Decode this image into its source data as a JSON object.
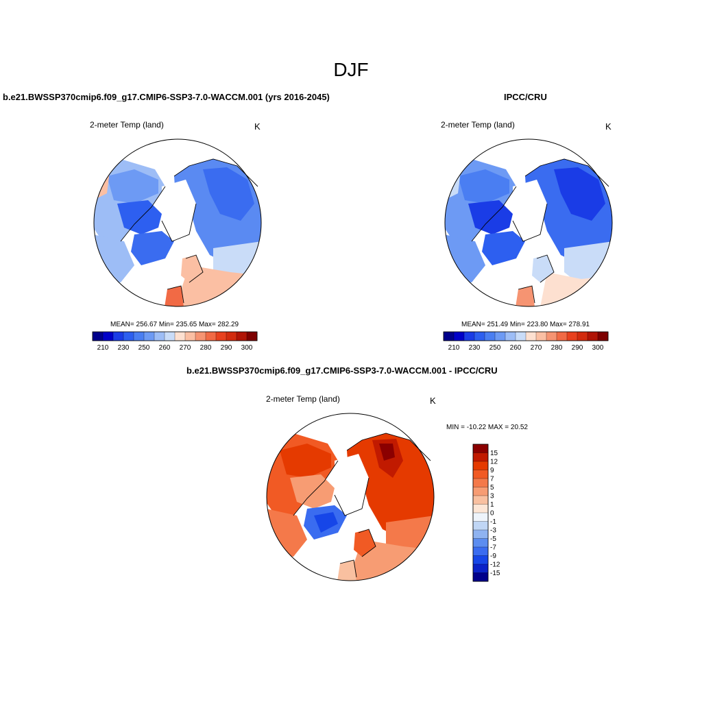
{
  "main_title": "DJF",
  "panels": [
    {
      "title": "b.e21.BWSSP370cmip6.f09_g17.CMIP6-SSP3-7.0-WACCM.001 (yrs 2016-2045)",
      "subtitle": "2-meter Temp (land)",
      "units": "K",
      "stats": "MEAN= 256.67  Min= 235.65  Max= 282.29",
      "field": "model"
    },
    {
      "title": "IPCC/CRU",
      "subtitle": "2-meter Temp (land)",
      "units": "K",
      "stats": "MEAN= 251.49  Min= 223.80  Max= 278.91",
      "field": "obs"
    },
    {
      "title": "b.e21.BWSSP370cmip6.f09_g17.CMIP6-SSP3-7.0-WACCM.001 - IPCC/CRU",
      "subtitle": "2-meter Temp (land)",
      "units": "K",
      "stats": "MIN = -10.22 MAX =  20.52",
      "field": "diff"
    }
  ],
  "temp_colorbar": {
    "colors": [
      "#00008b",
      "#0000c8",
      "#1a3ce6",
      "#2d5ff0",
      "#4a7ef2",
      "#6d9af4",
      "#9dbdf6",
      "#c9dcf8",
      "#fde0d0",
      "#fbbfa3",
      "#f69472",
      "#f16a45",
      "#e8411e",
      "#d22b0e",
      "#b01406",
      "#7d0000"
    ],
    "tick_labels": [
      "210",
      "230",
      "250",
      "260",
      "270",
      "280",
      "290",
      "300"
    ]
  },
  "diff_colorbar": {
    "colors_top_to_bottom": [
      "#8b0000",
      "#c11a00",
      "#e53a00",
      "#f15a24",
      "#f4794a",
      "#f79c73",
      "#f9c0a0",
      "#fde6d6",
      "#eef4fb",
      "#c0d6f5",
      "#8fb3f1",
      "#5c8df0",
      "#3a6cf0",
      "#1646e8",
      "#0a22c8",
      "#00008b"
    ],
    "tick_labels": [
      "15",
      "12",
      "9",
      "7",
      "5",
      "3",
      "1",
      "0",
      "-1",
      "-3",
      "-5",
      "-7",
      "-9",
      "-12",
      "-15"
    ]
  }
}
